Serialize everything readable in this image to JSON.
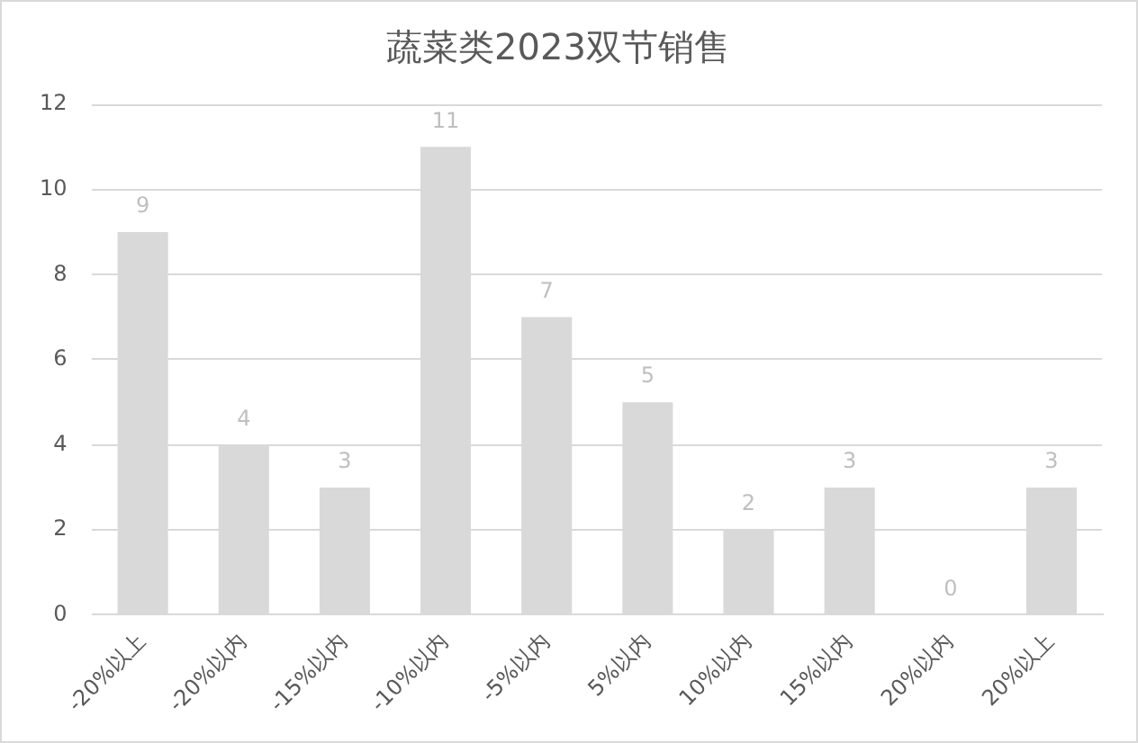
{
  "chart_data": {
    "type": "bar",
    "title": "蔬菜类2023双节销售",
    "categories": [
      "-20%以上",
      "-20%以内",
      "-15%以内",
      "-10%以内",
      "-5%以内",
      "5%以内",
      "10%以内",
      "15%以内",
      "20%以内",
      "20%以上"
    ],
    "values": [
      9,
      4,
      3,
      11,
      7,
      5,
      2,
      3,
      0,
      3
    ],
    "color": "#d9d9d9",
    "ylim": [
      0,
      12
    ],
    "yticks": [
      0,
      2,
      4,
      6,
      8,
      10,
      12
    ],
    "grid": "y",
    "data_labels": true
  }
}
